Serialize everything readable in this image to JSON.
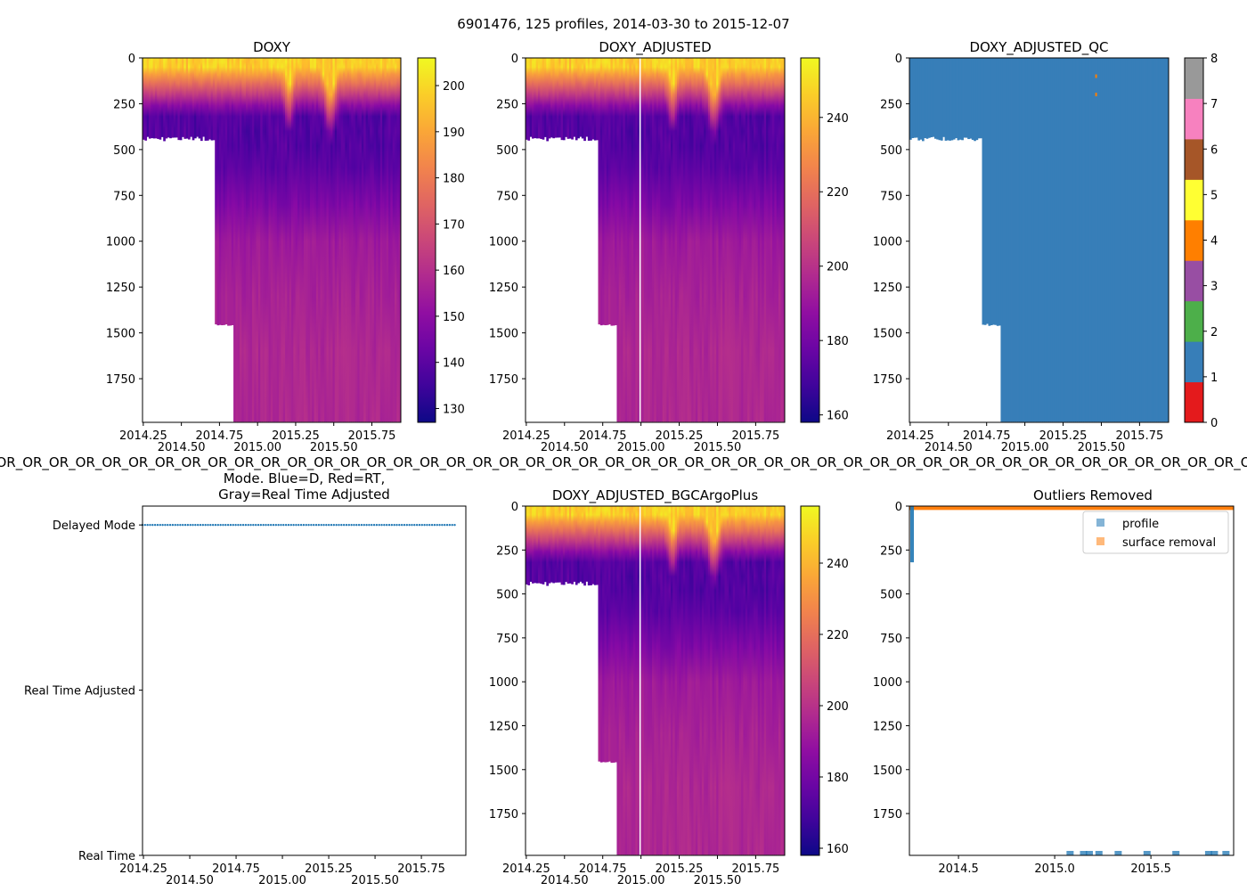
{
  "suptitle": "6901476, 125 profiles, 2014-03-30 to 2015-12-07",
  "chart_data": [
    {
      "type": "heatmap",
      "title": "DOXY",
      "n_profiles": 125,
      "xlim": [
        2014.245,
        2015.94
      ],
      "ylim": [
        1988,
        0
      ],
      "xticks": [
        "2014.25",
        "2014.50",
        "2014.75",
        "2015.00",
        "2015.25",
        "2015.50",
        "2015.75"
      ],
      "yticks": [
        "0",
        "250",
        "500",
        "750",
        "1000",
        "1250",
        "1500",
        "1750"
      ],
      "colorbar": {
        "cmap": "plasma_r",
        "range": [
          127,
          206
        ],
        "ticks": [
          "130",
          "140",
          "150",
          "160",
          "170",
          "180",
          "190",
          "200"
        ]
      }
    },
    {
      "type": "heatmap",
      "title": "DOXY_ADJUSTED",
      "xlim": [
        2014.245,
        2015.94
      ],
      "ylim": [
        1988,
        0
      ],
      "xticks": [
        "2014.25",
        "2014.50",
        "2014.75",
        "2015.00",
        "2015.25",
        "2015.50",
        "2015.75"
      ],
      "yticks": [
        "0",
        "250",
        "500",
        "750",
        "1000",
        "1250",
        "1500",
        "1750"
      ],
      "colorbar": {
        "cmap": "plasma_r",
        "range": [
          158,
          256
        ],
        "ticks": [
          "160",
          "180",
          "200",
          "220",
          "240"
        ]
      }
    },
    {
      "type": "heatmap",
      "title": "DOXY_ADJUSTED_QC",
      "xlim": [
        2014.245,
        2015.94
      ],
      "ylim": [
        1988,
        0
      ],
      "xticks": [
        "2014.25",
        "2014.50",
        "2014.75",
        "2015.00",
        "2015.25",
        "2015.50",
        "2015.75"
      ],
      "yticks": [
        "0",
        "250",
        "500",
        "750",
        "1000",
        "1250",
        "1500",
        "1750"
      ],
      "dominant_flag": 1,
      "colorbar": {
        "range": [
          0,
          8
        ],
        "ticks": [
          "0",
          "1",
          "2",
          "3",
          "4",
          "5",
          "6",
          "7",
          "8"
        ],
        "colors": [
          "#e41a1c",
          "#377eb8",
          "#4daf4a",
          "#984ea3",
          "#ff7f00",
          "#ffff33",
          "#a65628",
          "#f781bf",
          "#999999"
        ]
      }
    },
    {
      "type": "scatter",
      "title_line1": "Mode. Blue=D, Red=RT,",
      "title_line2": "Gray=Real Time Adjusted",
      "overlap_text": "R_OR_OR_OR_OR_OR_OR_OR_OR_OR_OR_OR_OR_OR_OR_OR_OR_OR_OR_OR_OR_OR_OR_OR_OR_OR_OR_OR_OR_OR_OR_OR_OR_OR_OR_OR_OR_OR_OR_OR_OR_OR_OR_OR_OR_OR_OR_OR_OR_OR_OR_OR_OR_",
      "xlim": [
        2014.245,
        2015.99
      ],
      "xticks": [
        "2014.25",
        "2014.50",
        "2014.75",
        "2015.00",
        "2015.25",
        "2015.50",
        "2015.75"
      ],
      "yticks": [
        "Delayed Mode",
        "Real Time Adjusted",
        "Real Time"
      ],
      "mode_all": "Delayed Mode",
      "color": "#1f77b4"
    },
    {
      "type": "heatmap",
      "title": "DOXY_ADJUSTED_BGCArgoPlus",
      "xlim": [
        2014.245,
        2015.94
      ],
      "ylim": [
        1988,
        0
      ],
      "xticks": [
        "2014.25",
        "2014.50",
        "2014.75",
        "2015.00",
        "2015.25",
        "2015.50",
        "2015.75"
      ],
      "yticks": [
        "0",
        "250",
        "500",
        "750",
        "1000",
        "1250",
        "1500",
        "1750"
      ],
      "colorbar": {
        "cmap": "plasma_r",
        "range": [
          158,
          256
        ],
        "ticks": [
          "160",
          "180",
          "200",
          "220",
          "240"
        ]
      }
    },
    {
      "type": "scatter",
      "title": "Outliers Removed",
      "xlim": [
        2014.245,
        2015.93
      ],
      "ylim": [
        1988,
        0
      ],
      "xticks": [
        "2014.5",
        "2015.0",
        "2015.5"
      ],
      "yticks": [
        "0",
        "250",
        "500",
        "750",
        "1000",
        "1250",
        "1500",
        "1750"
      ],
      "legend": {
        "position": "upper-right",
        "entries": [
          {
            "label": "profile",
            "color": "#1f77b4"
          },
          {
            "label": "surface removal",
            "color": "#ff7f0e"
          }
        ]
      },
      "surface_removal_depth_max": 20,
      "profile_points": [
        {
          "x": 2014.25,
          "depth_range": [
            0,
            320
          ]
        },
        {
          "x": 2015.08,
          "depth": 1975
        },
        {
          "x": 2015.15,
          "depth": 1975
        },
        {
          "x": 2015.18,
          "depth": 1975
        },
        {
          "x": 2015.23,
          "depth": 1975
        },
        {
          "x": 2015.33,
          "depth": 1975
        },
        {
          "x": 2015.48,
          "depth": 1975
        },
        {
          "x": 2015.63,
          "depth": 1975
        },
        {
          "x": 2015.8,
          "depth": 1975
        },
        {
          "x": 2015.83,
          "depth": 1975
        },
        {
          "x": 2015.89,
          "depth": 1975
        }
      ]
    }
  ]
}
